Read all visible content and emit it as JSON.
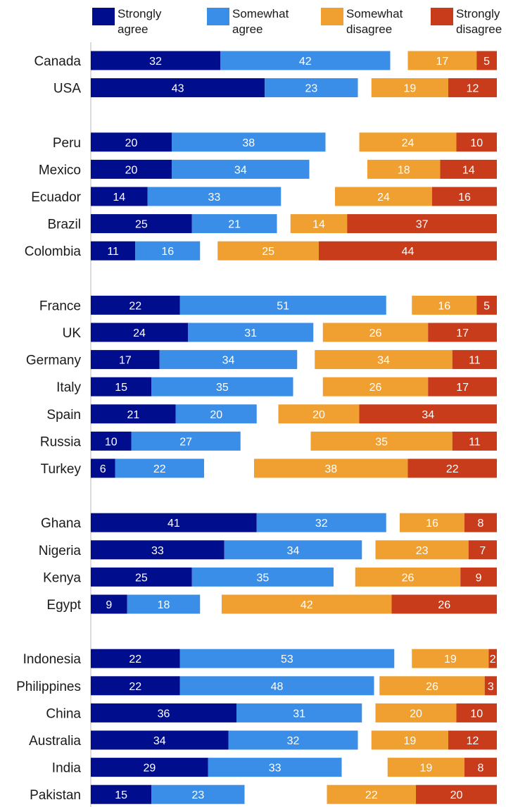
{
  "chart_data": {
    "type": "bar",
    "orientation": "horizontal",
    "stacked": "diverging",
    "title": "",
    "xlabel": "",
    "ylabel": "",
    "grid": false,
    "legend_position": "top",
    "series": [
      {
        "name": "Strongly agree",
        "color": "#000d8c",
        "side": "agree"
      },
      {
        "name": "Somewhat agree",
        "color": "#3a8ee8",
        "side": "agree"
      },
      {
        "name": "Somewhat disagree",
        "color": "#f0a030",
        "side": "disagree"
      },
      {
        "name": "Strongly disagree",
        "color": "#c83c1c",
        "side": "disagree"
      }
    ],
    "legend": [
      {
        "line1": "Strongly",
        "line2": "agree"
      },
      {
        "line1": "Somewhat",
        "line2": "agree"
      },
      {
        "line1": "Somewhat",
        "line2": "disagree"
      },
      {
        "line1": "Strongly",
        "line2": "disagree"
      }
    ],
    "groups": [
      {
        "rows": [
          {
            "country": "Canada",
            "values": [
              32,
              42,
              17,
              5
            ]
          },
          {
            "country": "USA",
            "values": [
              43,
              23,
              19,
              12
            ]
          }
        ]
      },
      {
        "rows": [
          {
            "country": "Peru",
            "values": [
              20,
              38,
              24,
              10
            ]
          },
          {
            "country": "Mexico",
            "values": [
              20,
              34,
              18,
              14
            ]
          },
          {
            "country": "Ecuador",
            "values": [
              14,
              33,
              24,
              16
            ]
          },
          {
            "country": "Brazil",
            "values": [
              25,
              21,
              14,
              37
            ]
          },
          {
            "country": "Colombia",
            "values": [
              11,
              16,
              25,
              44
            ]
          }
        ]
      },
      {
        "rows": [
          {
            "country": "France",
            "values": [
              22,
              51,
              16,
              5
            ]
          },
          {
            "country": "UK",
            "values": [
              24,
              31,
              26,
              17
            ]
          },
          {
            "country": "Germany",
            "values": [
              17,
              34,
              34,
              11
            ]
          },
          {
            "country": "Italy",
            "values": [
              15,
              35,
              26,
              17
            ]
          },
          {
            "country": "Spain",
            "values": [
              21,
              20,
              20,
              34
            ]
          },
          {
            "country": "Russia",
            "values": [
              10,
              27,
              35,
              11
            ]
          },
          {
            "country": "Turkey",
            "values": [
              6,
              22,
              38,
              22
            ]
          }
        ]
      },
      {
        "rows": [
          {
            "country": "Ghana",
            "values": [
              41,
              32,
              16,
              8
            ]
          },
          {
            "country": "Nigeria",
            "values": [
              33,
              34,
              23,
              7
            ]
          },
          {
            "country": "Kenya",
            "values": [
              25,
              35,
              26,
              9
            ]
          },
          {
            "country": "Egypt",
            "values": [
              9,
              18,
              42,
              26
            ]
          }
        ]
      },
      {
        "rows": [
          {
            "country": "Indonesia",
            "values": [
              22,
              53,
              19,
              2
            ]
          },
          {
            "country": "Philippines",
            "values": [
              22,
              48,
              26,
              3
            ]
          },
          {
            "country": "China",
            "values": [
              36,
              31,
              20,
              10
            ]
          },
          {
            "country": "Australia",
            "values": [
              34,
              32,
              19,
              12
            ]
          },
          {
            "country": "India",
            "values": [
              29,
              33,
              19,
              8
            ]
          },
          {
            "country": "Pakistan",
            "values": [
              15,
              23,
              22,
              20
            ]
          }
        ]
      }
    ]
  }
}
